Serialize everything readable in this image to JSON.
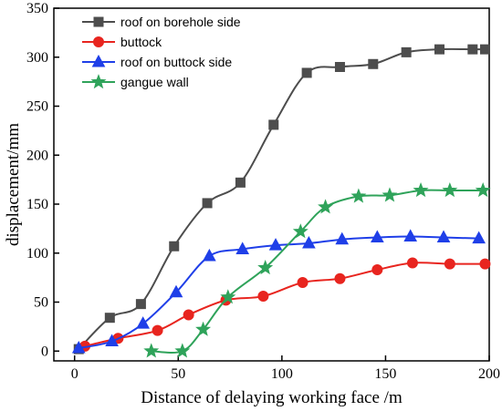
{
  "chart_data": {
    "type": "line",
    "title": "",
    "xlabel": "Distance of delaying working face /m",
    "ylabel": "displacement/mm",
    "xlim": [
      -10,
      200
    ],
    "ylim": [
      -10,
      350
    ],
    "xticks": [
      0,
      50,
      100,
      150,
      200
    ],
    "yticks": [
      0,
      50,
      100,
      150,
      200,
      250,
      300,
      350
    ],
    "grid": false,
    "legend_position": "top-left",
    "series": [
      {
        "name": "roof on borehole side",
        "color": "#4d4d4d",
        "marker": "square",
        "x": [
          2,
          17,
          32,
          48,
          64,
          80,
          96,
          112,
          128,
          144,
          160,
          176,
          192,
          198
        ],
        "y": [
          2,
          34,
          48,
          107,
          151,
          172,
          231,
          284,
          290,
          293,
          305,
          308,
          308,
          308
        ]
      },
      {
        "name": "buttock",
        "color": "#e8251f",
        "marker": "circle",
        "x": [
          5,
          21,
          40,
          55,
          73,
          91,
          110,
          128,
          146,
          163,
          181,
          198
        ],
        "y": [
          5,
          13,
          21,
          37,
          52,
          56,
          70,
          74,
          83,
          90,
          89,
          89
        ]
      },
      {
        "name": "roof on buttock side",
        "color": "#1f3fe8",
        "marker": "triangle",
        "x": [
          2,
          18,
          33,
          49,
          65,
          81,
          97,
          113,
          129,
          146,
          162,
          178,
          195
        ],
        "y": [
          3,
          10,
          28,
          60,
          97,
          104,
          108,
          110,
          114,
          116,
          117,
          116,
          115
        ]
      },
      {
        "name": "gangue wall",
        "color": "#2fa35a",
        "marker": "star",
        "x": [
          37,
          52,
          62,
          74,
          92,
          109,
          121,
          137,
          152,
          167,
          181,
          197
        ],
        "y": [
          0,
          0,
          22,
          55,
          85,
          122,
          147,
          158,
          159,
          164,
          164,
          164
        ]
      }
    ]
  }
}
